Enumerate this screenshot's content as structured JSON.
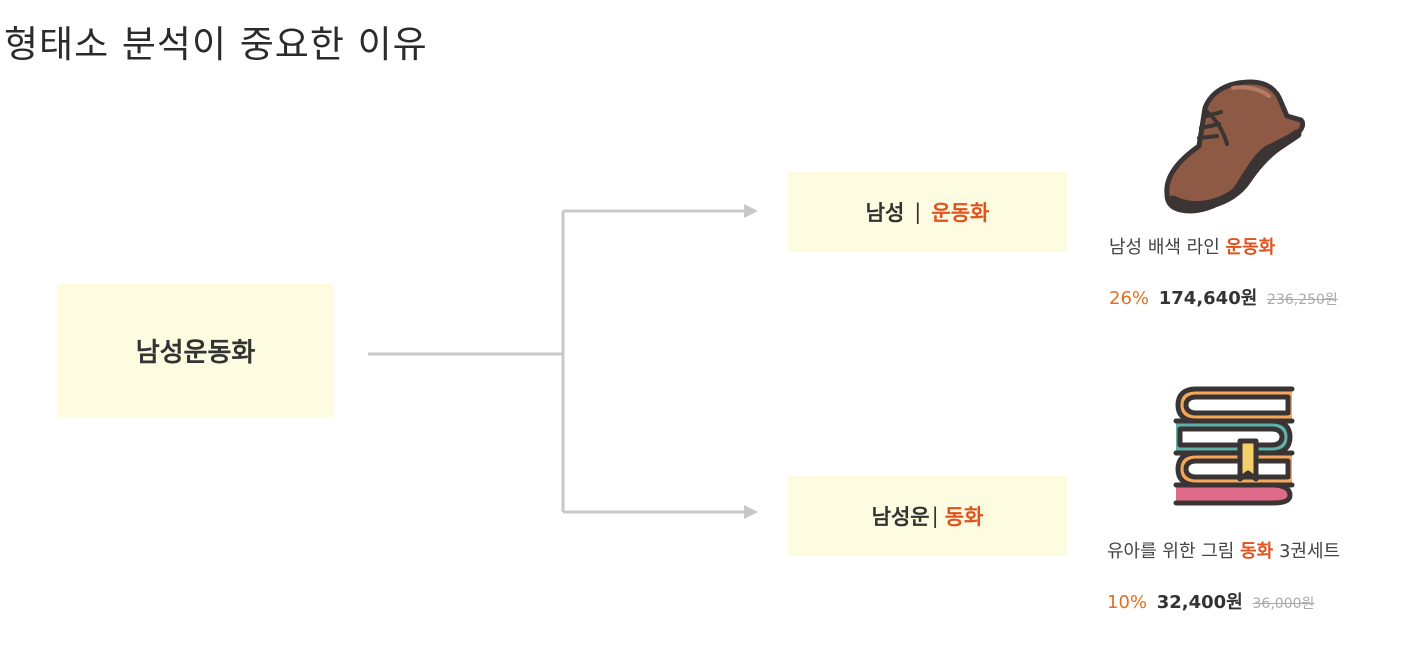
{
  "title": "형태소 분석이 중요한 이유",
  "query": "남성운동화",
  "splits": [
    {
      "left": "남성",
      "separator": "|",
      "right": "운동화"
    },
    {
      "left": "남성운",
      "separator": "|",
      "right": "동화"
    }
  ],
  "products": [
    {
      "icon": "shoe-icon",
      "name_prefix": "남성 배색 라인 ",
      "name_highlight": "운동화",
      "name_suffix": "",
      "discount": "26%",
      "price": "174,640원",
      "original_price": "236,250원"
    },
    {
      "icon": "books-icon",
      "name_prefix": "유아를 위한 그림 ",
      "name_highlight": "동화",
      "name_suffix": " 3권세트",
      "discount": "10%",
      "price": "32,400원",
      "original_price": "36,000원"
    }
  ],
  "colors": {
    "box_fill": "#fdfce1",
    "accent": "#e0531f",
    "connector": "#c8c8c8"
  }
}
